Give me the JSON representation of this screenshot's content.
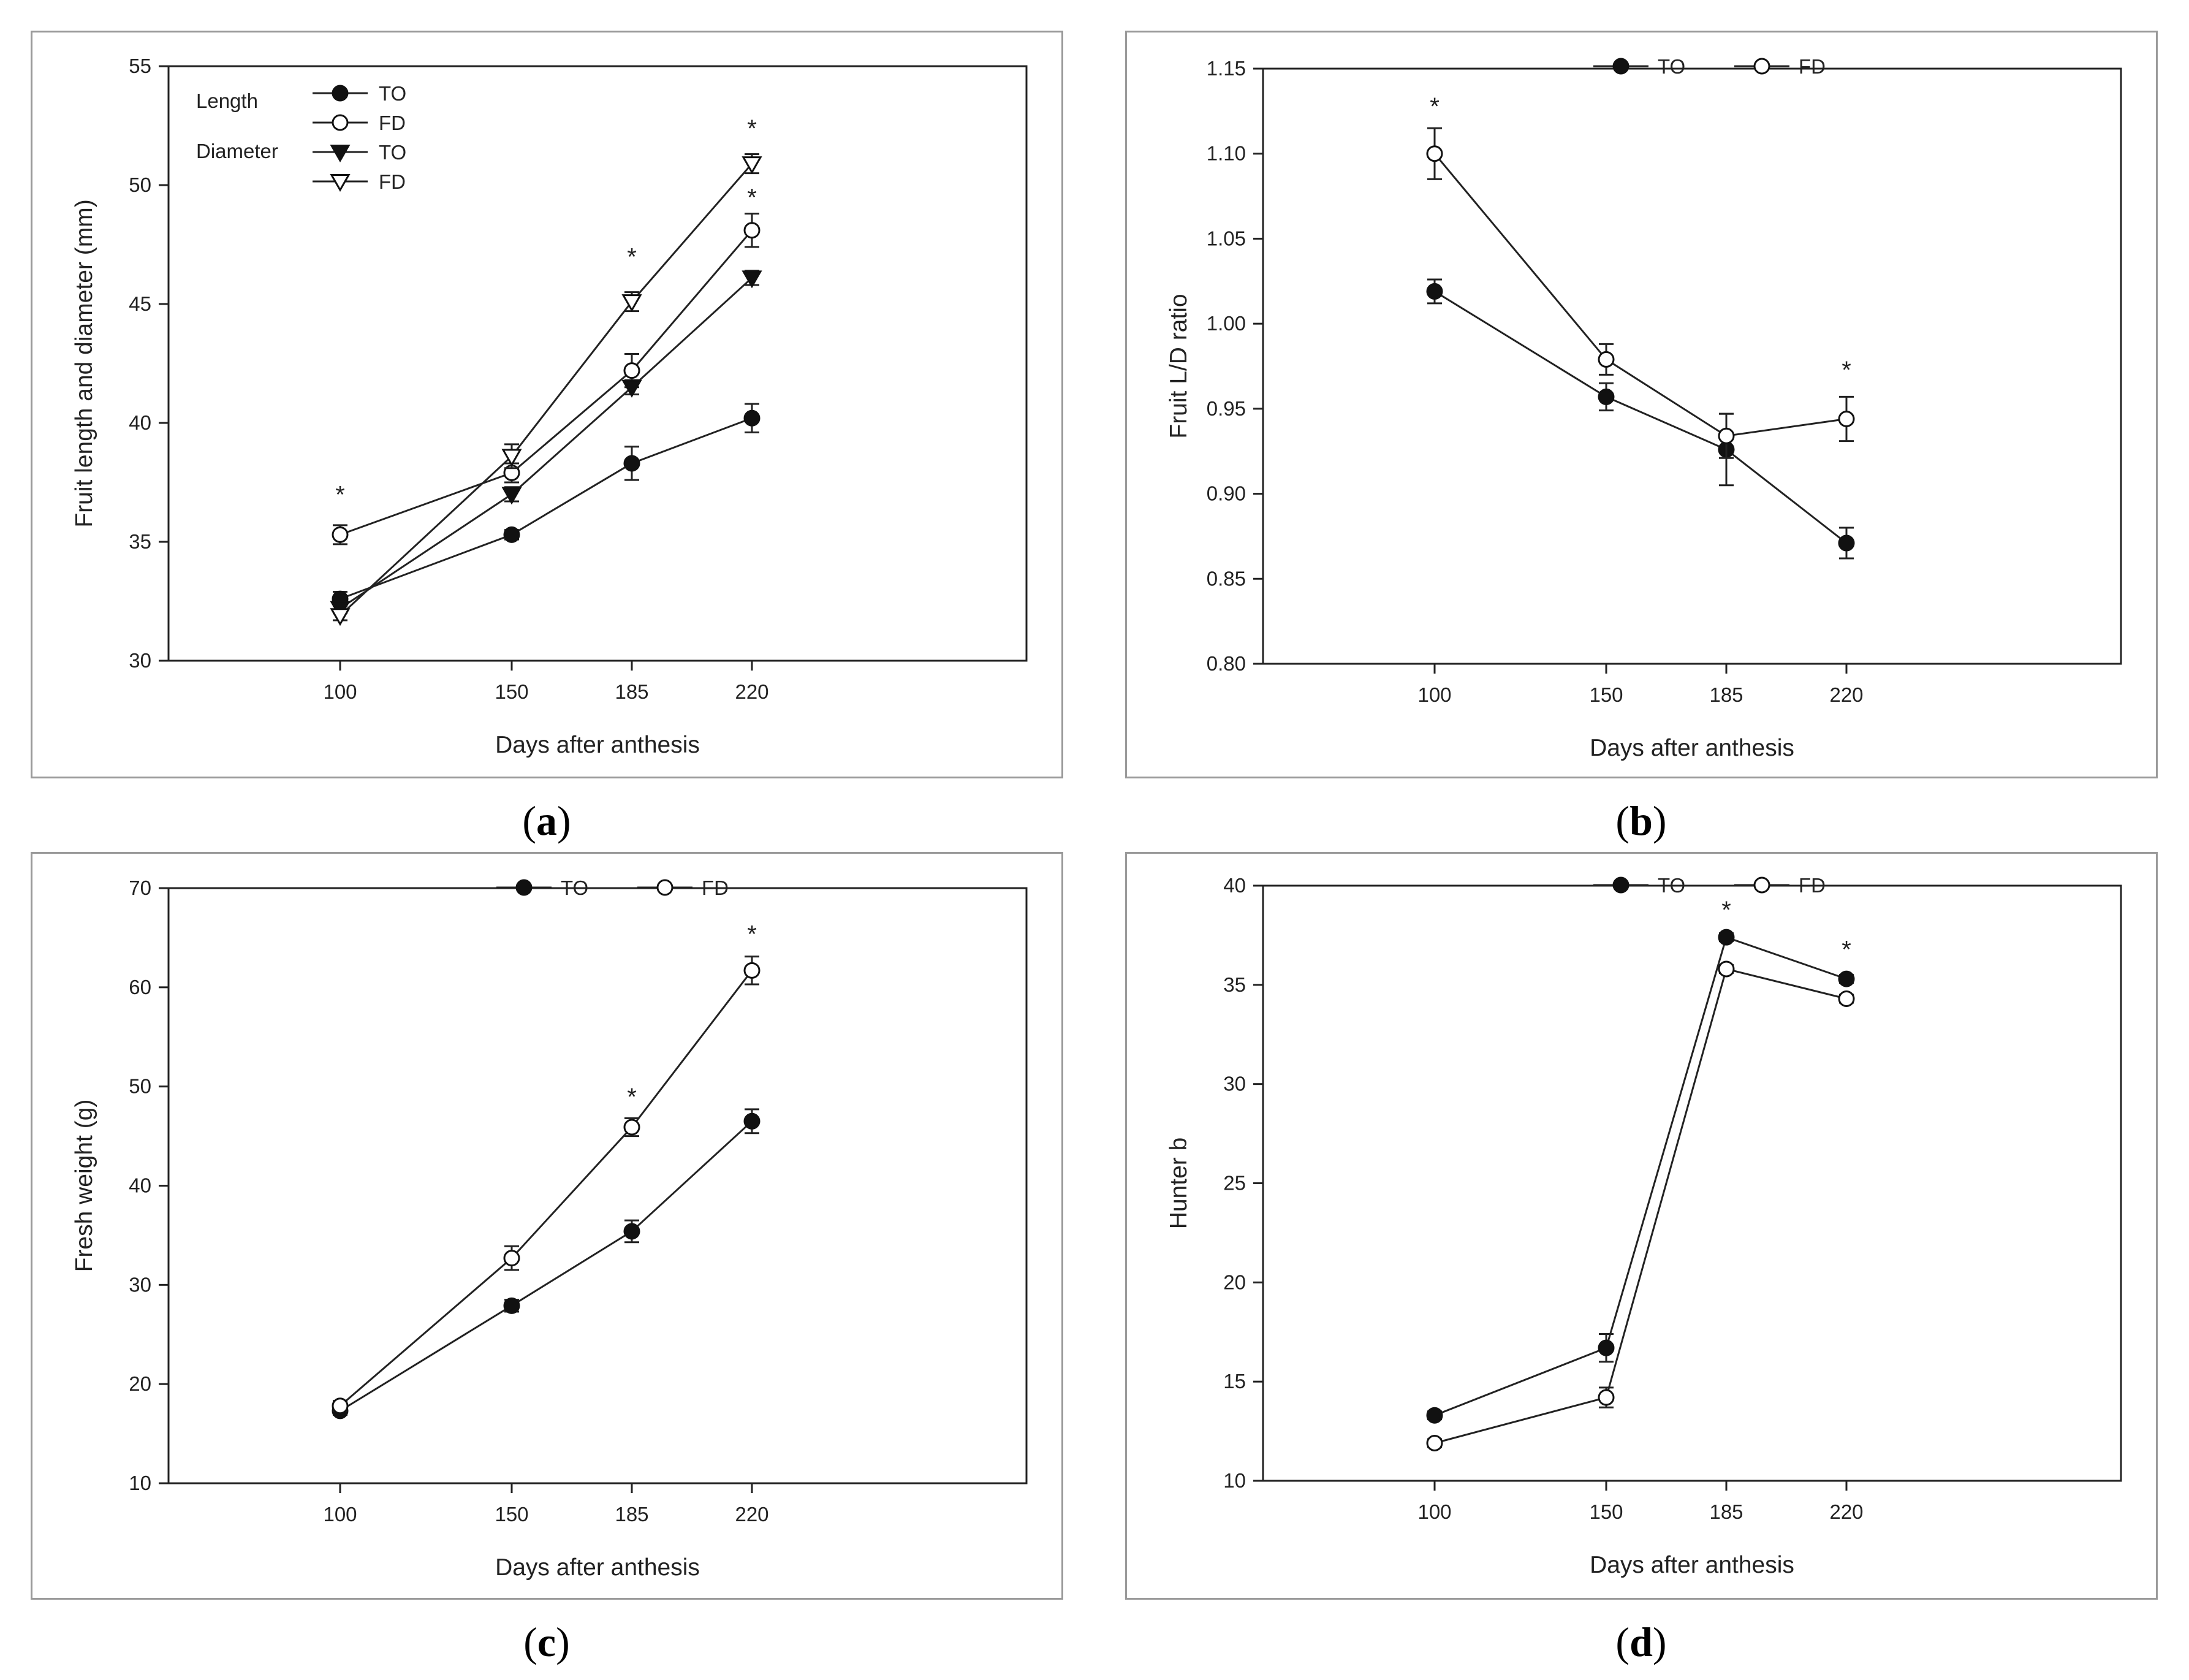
{
  "chart_data": [
    {
      "id": "a",
      "type": "line",
      "caption": "a",
      "xlabel": "Days after anthesis",
      "ylabel": "Fruit length and diameter (mm)",
      "x_categories": [
        "100",
        "150",
        "185",
        "220"
      ],
      "x_values": [
        100,
        150,
        185,
        220
      ],
      "xlim": [
        50,
        300
      ],
      "ylim": [
        30,
        55
      ],
      "yticks": [
        "30",
        "35",
        "40",
        "45",
        "50",
        "55"
      ],
      "ytick_values": [
        30,
        35,
        40,
        45,
        50,
        55
      ],
      "legend_groups": [
        "Length",
        "Diameter"
      ],
      "series": [
        {
          "name": "TO",
          "group": "Length",
          "marker": "filled-circle",
          "values": [
            32.6,
            35.3,
            38.3,
            40.2
          ],
          "errors": [
            0.3,
            0.2,
            0.7,
            0.6
          ]
        },
        {
          "name": "FD",
          "group": "Length",
          "marker": "open-circle",
          "values": [
            35.3,
            37.9,
            42.2,
            48.1
          ],
          "errors": [
            0.4,
            0.4,
            0.7,
            0.7
          ]
        },
        {
          "name": "TO",
          "group": "Diameter",
          "marker": "filled-triangle",
          "values": [
            32.2,
            37.0,
            41.5,
            46.1
          ],
          "errors": [
            0.2,
            0.3,
            0.3,
            0.3
          ]
        },
        {
          "name": "FD",
          "group": "Diameter",
          "marker": "open-triangle",
          "values": [
            31.9,
            38.6,
            45.1,
            50.9
          ],
          "errors": [
            0.2,
            0.5,
            0.4,
            0.4
          ]
        }
      ],
      "significance": [
        {
          "x": 100,
          "y": 37.0,
          "label": "*"
        },
        {
          "x": 185,
          "y": 47.0,
          "label": "*"
        },
        {
          "x": 220,
          "y": 52.4,
          "label": "*"
        },
        {
          "x": 220,
          "y": 49.5,
          "label": "*"
        }
      ]
    },
    {
      "id": "b",
      "type": "line",
      "caption": "b",
      "xlabel": "Days after anthesis",
      "ylabel": "Fruit L/D ratio",
      "x_categories": [
        "100",
        "150",
        "185",
        "220"
      ],
      "x_values": [
        100,
        150,
        185,
        220
      ],
      "xlim": [
        50,
        300
      ],
      "ylim": [
        0.8,
        1.15
      ],
      "yticks": [
        "0.80",
        "0.85",
        "0.90",
        "0.95",
        "1.00",
        "1.05",
        "1.10",
        "1.15"
      ],
      "ytick_values": [
        0.8,
        0.85,
        0.9,
        0.95,
        1.0,
        1.05,
        1.1,
        1.15
      ],
      "legend_groups": [],
      "series": [
        {
          "name": "TO",
          "marker": "filled-circle",
          "values": [
            1.019,
            0.957,
            0.926,
            0.871
          ],
          "errors": [
            0.007,
            0.008,
            0.021,
            0.009
          ]
        },
        {
          "name": "FD",
          "marker": "open-circle",
          "values": [
            1.1,
            0.979,
            0.934,
            0.944
          ],
          "errors": [
            0.015,
            0.009,
            0.013,
            0.013
          ]
        }
      ],
      "significance": [
        {
          "x": 100,
          "y": 1.128,
          "label": "*"
        },
        {
          "x": 220,
          "y": 0.973,
          "label": "*"
        }
      ]
    },
    {
      "id": "c",
      "type": "line",
      "caption": "c",
      "xlabel": "Days after anthesis",
      "ylabel": "Fresh weight (g)",
      "x_categories": [
        "100",
        "150",
        "185",
        "220"
      ],
      "x_values": [
        100,
        150,
        185,
        220
      ],
      "xlim": [
        50,
        300
      ],
      "ylim": [
        10,
        70
      ],
      "yticks": [
        "10",
        "20",
        "30",
        "40",
        "50",
        "60",
        "70"
      ],
      "ytick_values": [
        10,
        20,
        30,
        40,
        50,
        60,
        70
      ],
      "legend_groups": [],
      "series": [
        {
          "name": "TO",
          "marker": "filled-circle",
          "values": [
            17.3,
            27.9,
            35.4,
            46.5
          ],
          "errors": [
            0.4,
            0.6,
            1.1,
            1.2
          ]
        },
        {
          "name": "FD",
          "marker": "open-circle",
          "values": [
            17.8,
            32.7,
            45.9,
            61.7
          ],
          "errors": [
            0.5,
            1.2,
            0.9,
            1.4
          ]
        }
      ],
      "significance": [
        {
          "x": 185,
          "y": 49.0,
          "label": "*"
        },
        {
          "x": 220,
          "y": 65.4,
          "label": "*"
        }
      ]
    },
    {
      "id": "d",
      "type": "line",
      "caption": "d",
      "xlabel": "Days after anthesis",
      "ylabel": "Hunter b",
      "x_categories": [
        "100",
        "150",
        "185",
        "220"
      ],
      "x_values": [
        100,
        150,
        185,
        220
      ],
      "xlim": [
        50,
        300
      ],
      "ylim": [
        10,
        40
      ],
      "yticks": [
        "10",
        "15",
        "20",
        "25",
        "30",
        "35",
        "40"
      ],
      "ytick_values": [
        10,
        15,
        20,
        25,
        30,
        35,
        40
      ],
      "legend_groups": [],
      "series": [
        {
          "name": "TO",
          "marker": "filled-circle",
          "values": [
            13.3,
            16.7,
            37.4,
            35.3
          ],
          "errors": [
            0.2,
            0.7,
            0.2,
            0.2
          ]
        },
        {
          "name": "FD",
          "marker": "open-circle",
          "values": [
            11.9,
            14.2,
            35.8,
            34.3
          ],
          "errors": [
            0.2,
            0.5,
            0.2,
            0.2
          ]
        }
      ],
      "significance": [
        {
          "x": 185,
          "y": 38.8,
          "label": "*"
        },
        {
          "x": 220,
          "y": 36.8,
          "label": "*"
        }
      ]
    }
  ]
}
